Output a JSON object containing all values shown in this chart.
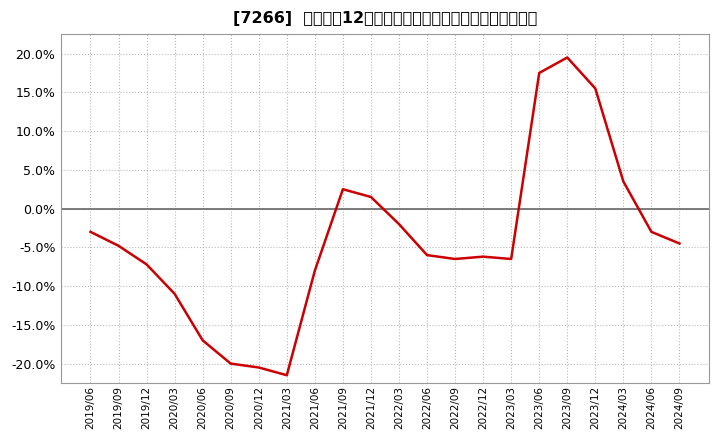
{
  "title": "[7266]  売上高の12か月移動合計の対前年同期増減率の推移",
  "line_color": "#cc0000",
  "background_color": "#ffffff",
  "plot_bg_color": "#ffffff",
  "grid_color": "#bbbbbb",
  "zero_line_color": "#666666",
  "ylim": [
    -0.225,
    0.225
  ],
  "yticks": [
    -0.2,
    -0.15,
    -0.1,
    -0.05,
    0.0,
    0.05,
    0.1,
    0.15,
    0.2
  ],
  "dates": [
    "2019/06",
    "2019/09",
    "2019/12",
    "2020/03",
    "2020/06",
    "2020/09",
    "2020/12",
    "2021/03",
    "2021/06",
    "2021/09",
    "2021/12",
    "2022/03",
    "2022/06",
    "2022/09",
    "2022/12",
    "2023/03",
    "2023/06",
    "2023/09",
    "2023/12",
    "2024/03",
    "2024/06",
    "2024/09"
  ],
  "values": [
    -0.03,
    -0.048,
    -0.072,
    -0.11,
    -0.17,
    -0.2,
    -0.205,
    -0.215,
    -0.08,
    0.025,
    0.015,
    -0.02,
    -0.06,
    -0.065,
    -0.062,
    -0.065,
    0.175,
    0.195,
    0.155,
    0.035,
    -0.03,
    -0.045
  ],
  "line_width": 1.8,
  "title_fontsize": 11.5,
  "ylabel_fontsize": 9,
  "xlabel_fontsize": 7.5
}
